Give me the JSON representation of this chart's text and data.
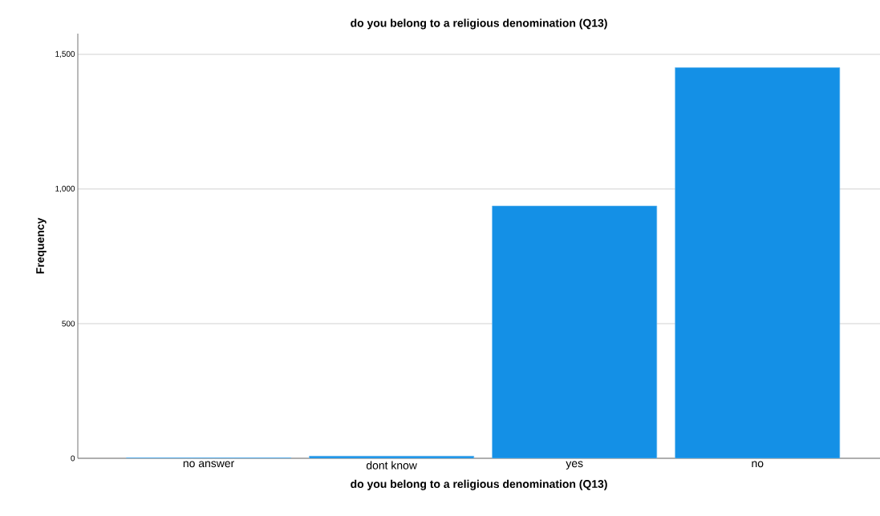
{
  "chart_data": {
    "type": "bar",
    "title": "do you belong to a religious denomination (Q13)",
    "xlabel": "do you belong to a religious denomination (Q13)",
    "ylabel": "Frequency",
    "categories": [
      "no answer",
      "dont know",
      "yes",
      "no"
    ],
    "values": [
      2,
      8,
      937,
      1451
    ],
    "color": "#1490e6",
    "ylim": [
      0,
      1577
    ],
    "yticks": [
      {
        "value": 0,
        "label": "0"
      },
      {
        "value": 500,
        "label": "500"
      },
      {
        "value": 1000,
        "label": "1,000"
      },
      {
        "value": 1500,
        "label": "1,500"
      }
    ],
    "grid": "y"
  }
}
